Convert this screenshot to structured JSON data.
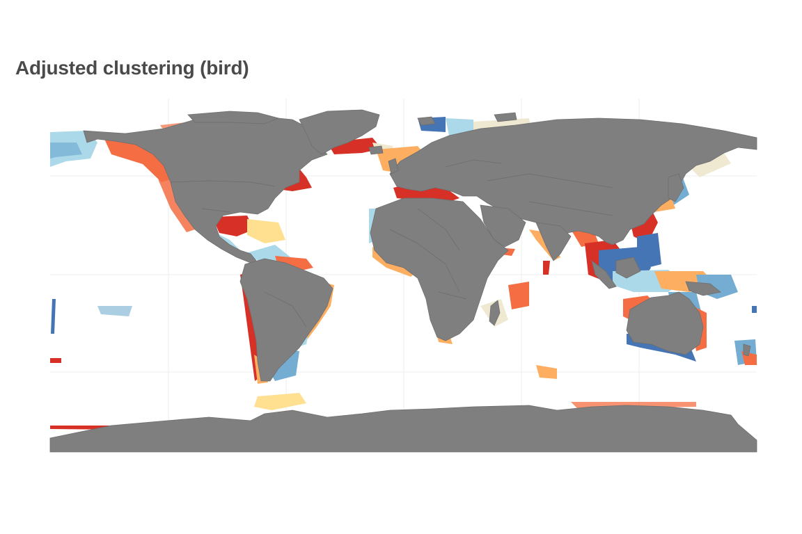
{
  "title": "Adjusted clustering (bird)",
  "colors": {
    "land": "#7f7f7f",
    "border": "#6b6b6b",
    "gridline": "#ececec",
    "background": "#ffffff",
    "palette": [
      "#d73027",
      "#f46d43",
      "#fdae61",
      "#fee090",
      "#efe9d2",
      "#e0f3f8",
      "#abd9e9",
      "#74add1",
      "#4575b4"
    ]
  },
  "map": {
    "projection": "equirectangular",
    "grid": true,
    "legend": "none"
  }
}
